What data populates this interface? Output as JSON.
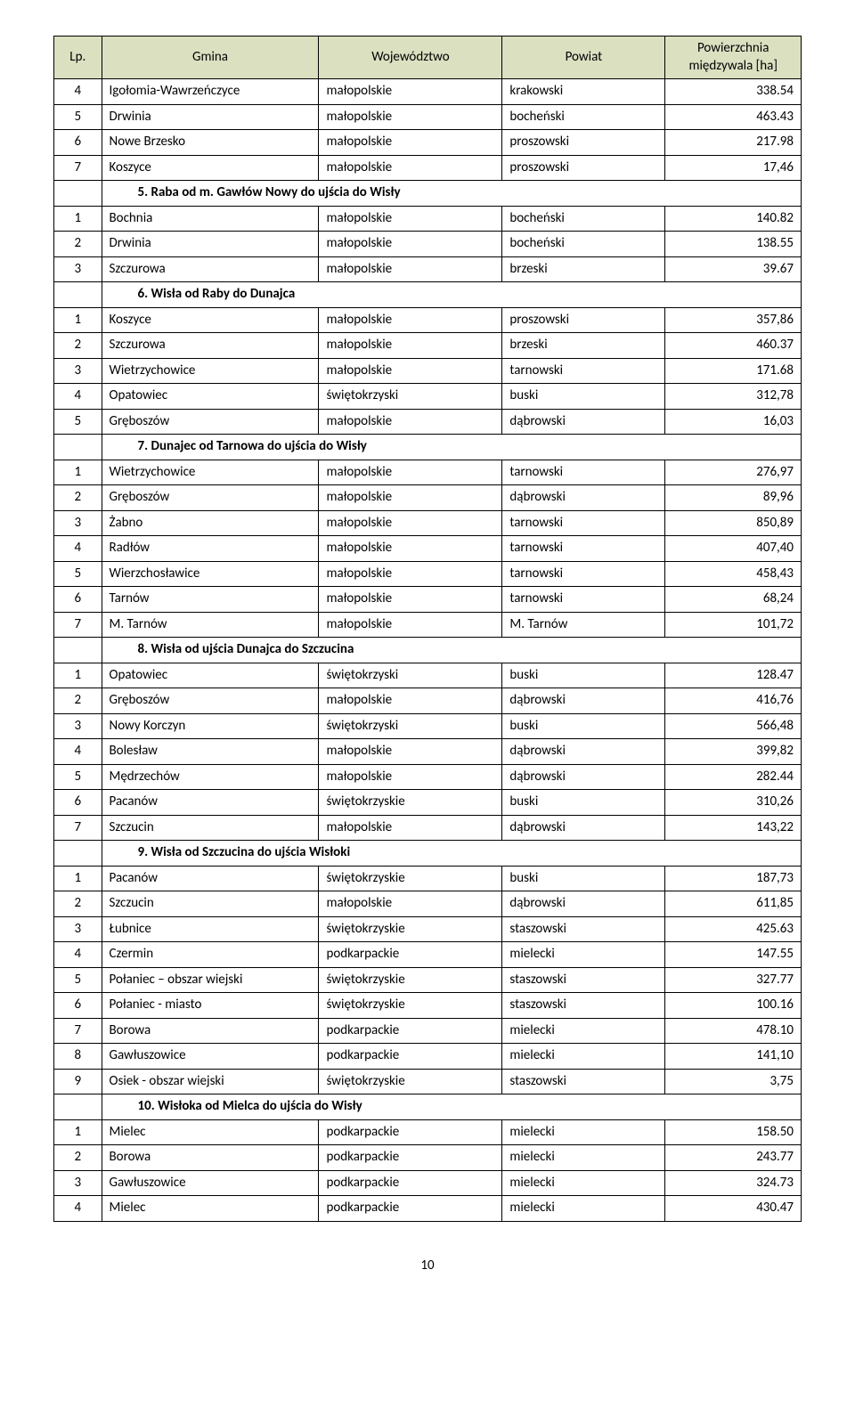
{
  "header_bg": "#dbe0c1",
  "columns": {
    "lp": "Lp.",
    "gmina": "Gmina",
    "woj": "Województwo",
    "pow": "Powiat",
    "area_l1": "Powierzchnia",
    "area_l2": "międzywala [ha]"
  },
  "rows": [
    {
      "type": "data",
      "lp": "4",
      "gmina": "Igołomia-Wawrzeńczyce",
      "woj": "małopolskie",
      "pow": "krakowski",
      "area": "338.54"
    },
    {
      "type": "data",
      "lp": "5",
      "gmina": "Drwinia",
      "woj": "małopolskie",
      "pow": "bocheński",
      "area": "463.43"
    },
    {
      "type": "data",
      "lp": "6",
      "gmina": "Nowe Brzesko",
      "woj": "małopolskie",
      "pow": "proszowski",
      "area": "217.98"
    },
    {
      "type": "data",
      "lp": "7",
      "gmina": "Koszyce",
      "woj": "małopolskie",
      "pow": "proszowski",
      "area": "17,46"
    },
    {
      "type": "section",
      "label": "5.   Raba od m. Gawłów Nowy do ujścia do Wisły"
    },
    {
      "type": "data",
      "lp": "1",
      "gmina": "Bochnia",
      "woj": "małopolskie",
      "pow": "bocheński",
      "area": "140.82"
    },
    {
      "type": "data",
      "lp": "2",
      "gmina": "Drwinia",
      "woj": "małopolskie",
      "pow": "bocheński",
      "area": "138.55"
    },
    {
      "type": "data",
      "lp": "3",
      "gmina": "Szczurowa",
      "woj": "małopolskie",
      "pow": "brzeski",
      "area": "39.67"
    },
    {
      "type": "section",
      "label": "6.   Wisła od Raby do Dunajca"
    },
    {
      "type": "data",
      "lp": "1",
      "gmina": "Koszyce",
      "woj": "małopolskie",
      "pow": "proszowski",
      "area": "357,86"
    },
    {
      "type": "data",
      "lp": "2",
      "gmina": "Szczurowa",
      "woj": "małopolskie",
      "pow": "brzeski",
      "area": "460.37"
    },
    {
      "type": "data",
      "lp": "3",
      "gmina": "Wietrzychowice",
      "woj": "małopolskie",
      "pow": "tarnowski",
      "area": "171.68"
    },
    {
      "type": "data",
      "lp": "4",
      "gmina": "Opatowiec",
      "woj": "świętokrzyski",
      "pow": "buski",
      "area": "312,78"
    },
    {
      "type": "data",
      "lp": "5",
      "gmina": "Gręboszów",
      "woj": "małopolskie",
      "pow": "dąbrowski",
      "area": "16,03"
    },
    {
      "type": "section",
      "label": "7.   Dunajec od Tarnowa do ujścia do Wisły"
    },
    {
      "type": "data",
      "lp": "1",
      "gmina": "Wietrzychowice",
      "woj": "małopolskie",
      "pow": "tarnowski",
      "area": "276,97"
    },
    {
      "type": "data",
      "lp": "2",
      "gmina": "Gręboszów",
      "woj": "małopolskie",
      "pow": "dąbrowski",
      "area": "89,96"
    },
    {
      "type": "data",
      "lp": "3",
      "gmina": "Żabno",
      "woj": "małopolskie",
      "pow": "tarnowski",
      "area": "850,89"
    },
    {
      "type": "data",
      "lp": "4",
      "gmina": "Radłów",
      "woj": "małopolskie",
      "pow": "tarnowski",
      "area": "407,40"
    },
    {
      "type": "data",
      "lp": "5",
      "gmina": "Wierzchosławice",
      "woj": "małopolskie",
      "pow": "tarnowski",
      "area": "458,43"
    },
    {
      "type": "data",
      "lp": "6",
      "gmina": "Tarnów",
      "woj": "małopolskie",
      "pow": "tarnowski",
      "area": "68,24"
    },
    {
      "type": "data",
      "lp": "7",
      "gmina": "M. Tarnów",
      "woj": "małopolskie",
      "pow": "M. Tarnów",
      "area": "101,72"
    },
    {
      "type": "section",
      "label": "8.   Wisła od ujścia Dunajca do Szczucina"
    },
    {
      "type": "data",
      "lp": "1",
      "gmina": "Opatowiec",
      "woj": "świętokrzyski",
      "pow": "buski",
      "area": "128.47"
    },
    {
      "type": "data",
      "lp": "2",
      "gmina": "Gręboszów",
      "woj": "małopolskie",
      "pow": "dąbrowski",
      "area": "416,76"
    },
    {
      "type": "data",
      "lp": "3",
      "gmina": "Nowy Korczyn",
      "woj": "świętokrzyski",
      "pow": "buski",
      "area": "566,48"
    },
    {
      "type": "data",
      "lp": "4",
      "gmina": "Bolesław",
      "woj": "małopolskie",
      "pow": "dąbrowski",
      "area": "399,82"
    },
    {
      "type": "data",
      "lp": "5",
      "gmina": "Mędrzechów",
      "woj": "małopolskie",
      "pow": "dąbrowski",
      "area": "282.44"
    },
    {
      "type": "data",
      "lp": "6",
      "gmina": "Pacanów",
      "woj": "świętokrzyskie",
      "pow": "buski",
      "area": "310,26"
    },
    {
      "type": "data",
      "lp": "7",
      "gmina": "Szczucin",
      "woj": "małopolskie",
      "pow": "dąbrowski",
      "area": "143,22"
    },
    {
      "type": "section",
      "label": "9.   Wisła od Szczucina do ujścia Wisłoki"
    },
    {
      "type": "data",
      "lp": "1",
      "gmina": "Pacanów",
      "woj": "świętokrzyskie",
      "pow": "buski",
      "area": "187,73"
    },
    {
      "type": "data",
      "lp": "2",
      "gmina": "Szczucin",
      "woj": "małopolskie",
      "pow": "dąbrowski",
      "area": "611,85"
    },
    {
      "type": "data",
      "lp": "3",
      "gmina": "Łubnice",
      "woj": "świętokrzyskie",
      "pow": "staszowski",
      "area": "425.63"
    },
    {
      "type": "data",
      "lp": "4",
      "gmina": "Czermin",
      "woj": "podkarpackie",
      "pow": "mielecki",
      "area": "147.55"
    },
    {
      "type": "data",
      "lp": "5",
      "gmina": "Połaniec – obszar wiejski",
      "woj": "świętokrzyskie",
      "pow": "staszowski",
      "area": "327.77"
    },
    {
      "type": "data",
      "lp": "6",
      "gmina": "Połaniec - miasto",
      "woj": "świętokrzyskie",
      "pow": "staszowski",
      "area": "100.16"
    },
    {
      "type": "data",
      "lp": "7",
      "gmina": "Borowa",
      "woj": "podkarpackie",
      "pow": "mielecki",
      "area": "478.10"
    },
    {
      "type": "data",
      "lp": "8",
      "gmina": "Gawłuszowice",
      "woj": "podkarpackie",
      "pow": "mielecki",
      "area": "141,10"
    },
    {
      "type": "data",
      "lp": "9",
      "gmina": "Osiek - obszar wiejski",
      "woj": "świętokrzyskie",
      "pow": "staszowski",
      "area": "3,75"
    },
    {
      "type": "section",
      "label": "10.  Wisłoka od Mielca do ujścia do Wisły"
    },
    {
      "type": "data",
      "lp": "1",
      "gmina": "Mielec",
      "woj": "podkarpackie",
      "pow": "mielecki",
      "area": "158.50"
    },
    {
      "type": "data",
      "lp": "2",
      "gmina": "Borowa",
      "woj": "podkarpackie",
      "pow": "mielecki",
      "area": "243.77"
    },
    {
      "type": "data",
      "lp": "3",
      "gmina": "Gawłuszowice",
      "woj": "podkarpackie",
      "pow": "mielecki",
      "area": "324.73"
    },
    {
      "type": "data",
      "lp": "4",
      "gmina": "Mielec",
      "woj": "podkarpackie",
      "pow": "mielecki",
      "area": "430.47"
    }
  ],
  "page_number": "10"
}
